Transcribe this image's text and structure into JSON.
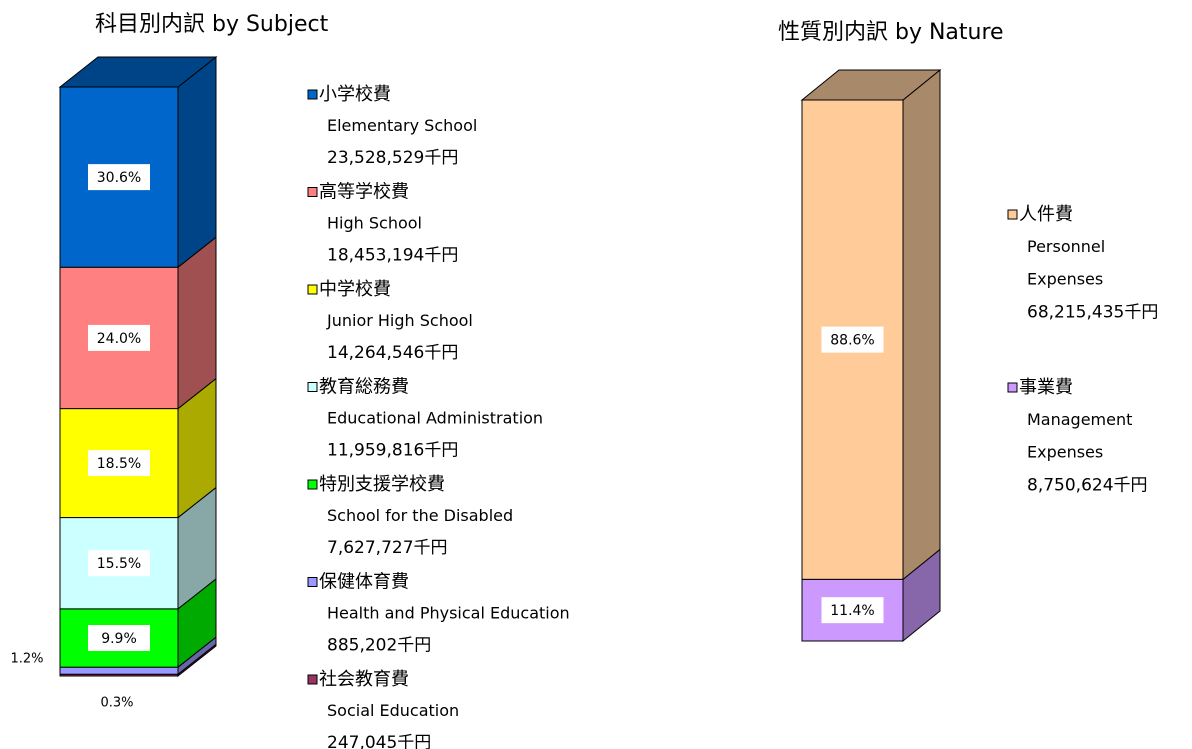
{
  "chart_data": [
    {
      "type": "bar",
      "title": "科目別内訳  by Subject",
      "series": [
        {
          "name": "小学校費",
          "name_en": [
            "Elementary School"
          ],
          "amount": "23,528,529千円",
          "color": "#0066cc",
          "side_color": "#004488",
          "values": [
            30.6
          ],
          "value_labels": [
            "30.6%"
          ]
        },
        {
          "name": "高等学校費",
          "name_en": [
            "High School"
          ],
          "amount": "18,453,194千円",
          "color": "#ff8080",
          "side_color": "#a05050",
          "values": [
            24.0
          ],
          "value_labels": [
            "24.0%"
          ]
        },
        {
          "name": "中学校費",
          "name_en": [
            "Junior High School"
          ],
          "amount": "14,264,546千円",
          "color": "#ffff00",
          "side_color": "#aaaa00",
          "values": [
            18.5
          ],
          "value_labels": [
            "18.5%"
          ]
        },
        {
          "name": "教育総務費",
          "name_en": [
            "Educational Administration"
          ],
          "amount": "11,959,816千円",
          "color": "#ccffff",
          "side_color": "#88a8a8",
          "values": [
            15.5
          ],
          "value_labels": [
            "15.5%"
          ]
        },
        {
          "name": "特別支援学校費",
          "name_en": [
            "School for the Disabled"
          ],
          "amount": "7,627,727千円",
          "color": "#00ff00",
          "side_color": "#00aa00",
          "values": [
            9.9
          ],
          "value_labels": [
            "9.9%"
          ]
        },
        {
          "name": "保健体育費",
          "name_en": [
            "Health and Physical Education"
          ],
          "amount": "885,202千円",
          "color": "#9999ff",
          "side_color": "#6666aa",
          "values": [
            1.2
          ],
          "value_labels": [
            "1.2%"
          ]
        },
        {
          "name": "社会教育費",
          "name_en": [
            "Social Education"
          ],
          "amount": "247,045千円",
          "color": "#993366",
          "side_color": "#662244",
          "values": [
            0.3
          ],
          "value_labels": [
            "0.3%"
          ]
        }
      ]
    },
    {
      "type": "bar",
      "title": "性質別内訳  by Nature",
      "series": [
        {
          "name": "人件費",
          "name_en": [
            "Personnel",
            "Expenses"
          ],
          "amount": "68,215,435千円",
          "color": "#ffcc99",
          "side_color": "#a8896a",
          "values": [
            88.6
          ],
          "value_labels": [
            "88.6%"
          ]
        },
        {
          "name": "事業費",
          "name_en": [
            "Management",
            "Expenses"
          ],
          "amount": "8,750,624千円",
          "color": "#cc99ff",
          "side_color": "#8866aa",
          "values": [
            11.4
          ],
          "value_labels": [
            "11.4%"
          ]
        }
      ]
    }
  ]
}
